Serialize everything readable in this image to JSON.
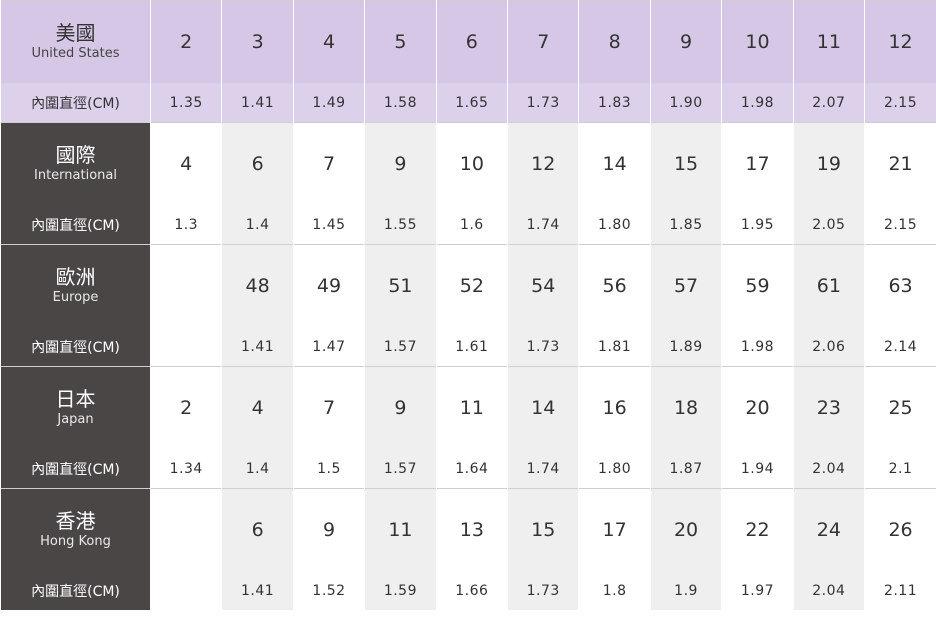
{
  "table": {
    "groups": [
      {
        "label": "美國",
        "label_en": "United States",
        "sizes": [
          "2",
          "3",
          "4",
          "5",
          "6",
          "7",
          "8",
          "9",
          "10",
          "11",
          "12"
        ],
        "sub_label": "內圍直徑(CM)",
        "diameters": [
          "1.35",
          "1.41",
          "1.49",
          "1.58",
          "1.65",
          "1.73",
          "1.83",
          "1.90",
          "1.98",
          "2.07",
          "2.15"
        ]
      },
      {
        "label": "國際",
        "label_en": "International",
        "sizes": [
          "4",
          "6",
          "7",
          "9",
          "10",
          "12",
          "14",
          "15",
          "17",
          "19",
          "21"
        ],
        "sub_label": "內圍直徑(CM)",
        "diameters": [
          "1.3",
          "1.4",
          "1.45",
          "1.55",
          "1.6",
          "1.74",
          "1.80",
          "1.85",
          "1.95",
          "2.05",
          "2.15"
        ]
      },
      {
        "label": "歐洲",
        "label_en": "Europe",
        "sizes": [
          null,
          "48",
          "49",
          "51",
          "52",
          "54",
          "56",
          "57",
          "59",
          "61",
          "63"
        ],
        "sub_label": "內圍直徑(CM)",
        "diameters": [
          null,
          "1.41",
          "1.47",
          "1.57",
          "1.61",
          "1.73",
          "1.81",
          "1.89",
          "1.98",
          "2.06",
          "2.14"
        ]
      },
      {
        "label": "日本",
        "label_en": "Japan",
        "sizes": [
          "2",
          "4",
          "7",
          "9",
          "11",
          "14",
          "16",
          "18",
          "20",
          "23",
          "25"
        ],
        "sub_label": "內圍直徑(CM)",
        "diameters": [
          "1.34",
          "1.4",
          "1.5",
          "1.57",
          "1.64",
          "1.74",
          "1.80",
          "1.87",
          "1.94",
          "2.04",
          "2.1"
        ]
      },
      {
        "label": "香港",
        "label_en": "Hong Kong",
        "sizes": [
          null,
          "6",
          "9",
          "11",
          "13",
          "15",
          "17",
          "20",
          "22",
          "24",
          "26"
        ],
        "sub_label": "內圍直徑(CM)",
        "diameters": [
          null,
          "1.41",
          "1.52",
          "1.59",
          "1.66",
          "1.73",
          "1.8",
          "1.9",
          "1.97",
          "2.04",
          "2.11"
        ]
      }
    ]
  }
}
